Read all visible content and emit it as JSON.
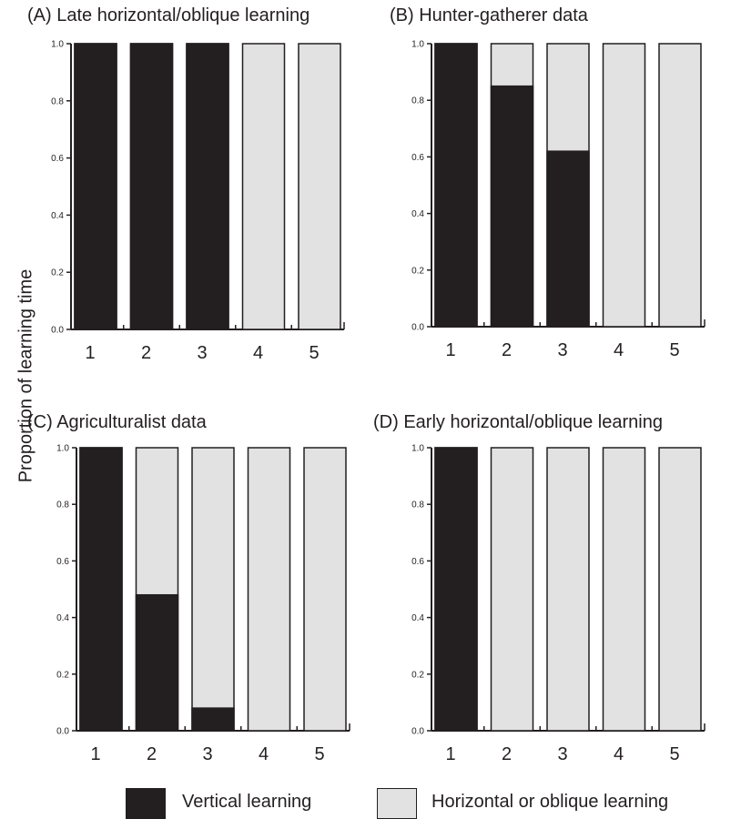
{
  "ylabel": "Proportion of learning time",
  "legend": {
    "vertical": "Vertical learning",
    "horizontal": "Horizontal or oblique learning"
  },
  "colors": {
    "vertical": "#231f20",
    "horizontal": "#e2e2e2",
    "outline": "#231f20"
  },
  "chart_data": [
    {
      "type": "bar",
      "title": "(A) Late horizontal/oblique learning",
      "categories": [
        "1",
        "2",
        "3",
        "4",
        "5"
      ],
      "ylim": [
        0,
        1.0
      ],
      "yticks": [
        "0.0",
        "0.2",
        "0.4",
        "0.6",
        "0.8",
        "1.0"
      ],
      "series": [
        {
          "name": "Vertical learning",
          "values": [
            1.0,
            1.0,
            1.0,
            0.0,
            0.0
          ]
        },
        {
          "name": "Horizontal or oblique learning",
          "values": [
            0.0,
            0.0,
            0.0,
            1.0,
            1.0
          ]
        }
      ]
    },
    {
      "type": "bar",
      "title": "(B) Hunter-gatherer data",
      "categories": [
        "1",
        "2",
        "3",
        "4",
        "5"
      ],
      "ylim": [
        0,
        1.0
      ],
      "yticks": [
        "0.0",
        "0.2",
        "0.4",
        "0.6",
        "0.8",
        "1.0"
      ],
      "series": [
        {
          "name": "Vertical learning",
          "values": [
            1.0,
            0.85,
            0.62,
            0.0,
            0.0
          ]
        },
        {
          "name": "Horizontal or oblique learning",
          "values": [
            0.0,
            0.15,
            0.38,
            1.0,
            1.0
          ]
        }
      ]
    },
    {
      "type": "bar",
      "title": "(C) Agriculturalist data",
      "categories": [
        "1",
        "2",
        "3",
        "4",
        "5"
      ],
      "ylim": [
        0,
        1.0
      ],
      "yticks": [
        "0.0",
        "0.2",
        "0.4",
        "0.6",
        "0.8",
        "1.0"
      ],
      "series": [
        {
          "name": "Vertical learning",
          "values": [
            1.0,
            0.48,
            0.08,
            0.0,
            0.0
          ]
        },
        {
          "name": "Horizontal or oblique learning",
          "values": [
            0.0,
            0.52,
            0.92,
            1.0,
            1.0
          ]
        }
      ]
    },
    {
      "type": "bar",
      "title": "(D) Early horizontal/oblique learning",
      "categories": [
        "1",
        "2",
        "3",
        "4",
        "5"
      ],
      "ylim": [
        0,
        1.0
      ],
      "yticks": [
        "0.0",
        "0.2",
        "0.4",
        "0.6",
        "0.8",
        "1.0"
      ],
      "series": [
        {
          "name": "Vertical learning",
          "values": [
            1.0,
            0.0,
            0.0,
            0.0,
            0.0
          ]
        },
        {
          "name": "Horizontal or oblique learning",
          "values": [
            0.0,
            1.0,
            1.0,
            1.0,
            1.0
          ]
        }
      ]
    }
  ]
}
